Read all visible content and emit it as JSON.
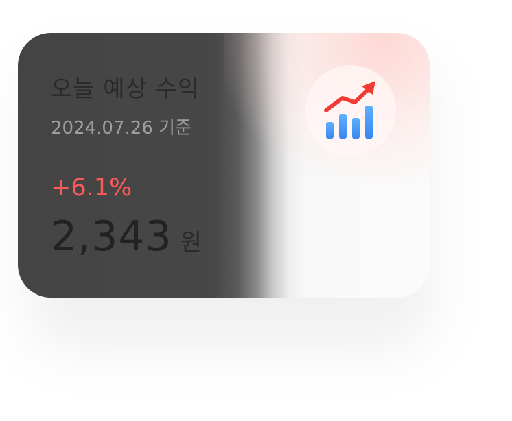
{
  "widget": {
    "title": "오늘 예상 수익",
    "date_label": "2024.07.26 기준",
    "change_percent": "+6.1%",
    "amount": "2,343",
    "currency_unit": "원",
    "icon": "chart-trending-up-icon"
  },
  "colors": {
    "card_dark": "#444444",
    "card_light": "#fbfbfb",
    "positive": "#ff5a5a",
    "bar_blue": "#4a9bf5",
    "arrow_red": "#ef3b33"
  }
}
